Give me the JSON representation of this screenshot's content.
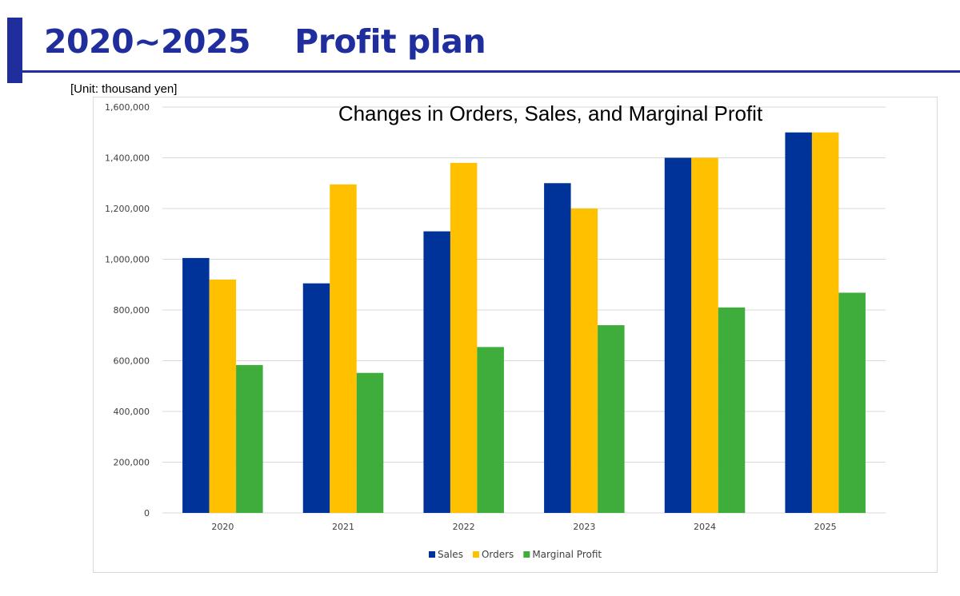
{
  "page": {
    "title": "2020~2025    Profit plan",
    "unit_note": "[Unit: thousand yen]"
  },
  "colors": {
    "accent": "#1f2e9c",
    "sales": "#003399",
    "orders": "#ffc000",
    "marginal_profit": "#3fad3c",
    "grid": "#d9d9d9"
  },
  "chart_data": {
    "type": "bar",
    "title": "Changes in Orders, Sales, and Marginal Profit",
    "xlabel": "",
    "ylabel": "",
    "categories": [
      "2020",
      "2021",
      "2022",
      "2023",
      "2024",
      "2025"
    ],
    "series": [
      {
        "name": "Sales",
        "color": "#003399",
        "values": [
          1005000,
          905000,
          1110000,
          1300000,
          1400000,
          1500000
        ]
      },
      {
        "name": "Orders",
        "color": "#ffc000",
        "values": [
          920000,
          1295000,
          1380000,
          1200000,
          1400000,
          1500000
        ]
      },
      {
        "name": "Marginal Profit",
        "color": "#3fad3c",
        "values": [
          583000,
          552000,
          654000,
          740000,
          810000,
          868000
        ]
      }
    ],
    "ylim": [
      0,
      1600000
    ],
    "yticks": [
      "0",
      "200,000",
      "400,000",
      "600,000",
      "800,000",
      "1,000,000",
      "1,200,000",
      "1,400,000",
      "1,600,000"
    ],
    "grid": true,
    "legend_position": "bottom"
  }
}
